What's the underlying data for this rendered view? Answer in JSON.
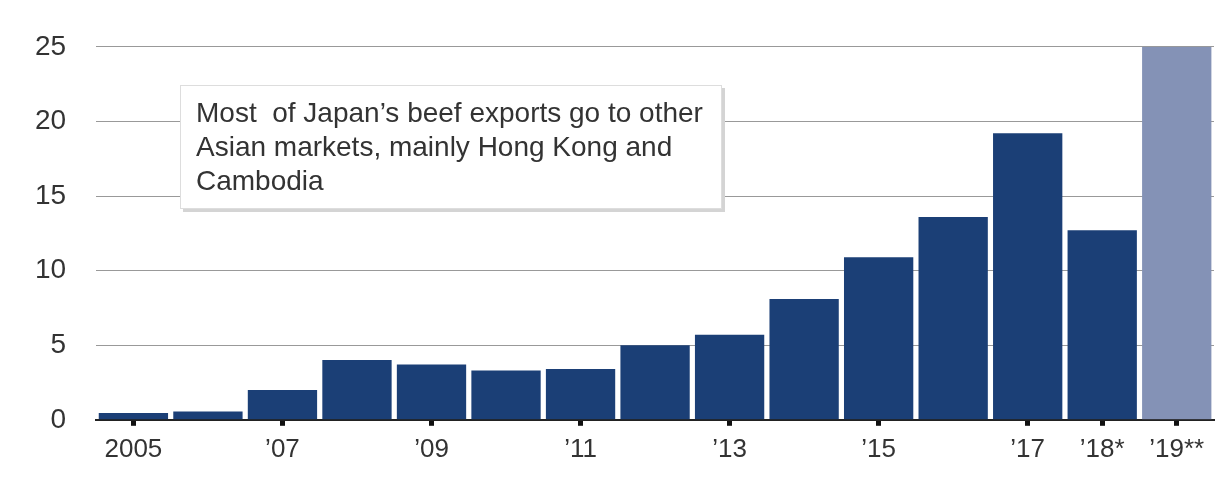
{
  "chart_data": {
    "type": "bar",
    "categories": [
      "2005",
      null,
      "’07",
      null,
      "’09",
      null,
      "’11",
      null,
      "’13",
      null,
      "’15",
      null,
      "’17",
      "’18*",
      "’19**"
    ],
    "values": [
      0.45,
      0.55,
      2.0,
      4.0,
      3.7,
      3.3,
      3.4,
      5.0,
      5.7,
      8.1,
      10.9,
      13.6,
      19.2,
      12.7,
      25
    ],
    "colors": [
      "#1b3f76",
      "#1b3f76",
      "#1b3f76",
      "#1b3f76",
      "#1b3f76",
      "#1b3f76",
      "#1b3f76",
      "#1b3f76",
      "#1b3f76",
      "#1b3f76",
      "#1b3f76",
      "#1b3f76",
      "#1b3f76",
      "#1b3f76",
      "#8492b6"
    ],
    "ylim": [
      0,
      25
    ],
    "yticks": [
      0,
      5,
      10,
      15,
      20,
      25
    ],
    "grid": "y",
    "legend": false,
    "annotations": [
      "Most  of Japan’s beef exports go to other Asian markets, mainly Hong Kong and Cambodia"
    ]
  }
}
